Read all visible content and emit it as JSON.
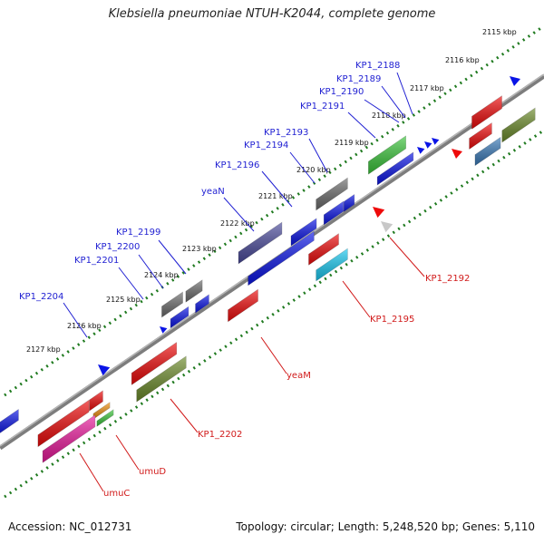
{
  "title": "Klebsiella pneumoniae NTUH-K2044, complete genome",
  "accession": "Accession: NC_012731",
  "topology": "Topology: circular; Length: 5,248,520 bp; Genes: 5,110",
  "ticks": [
    "2115 kbp",
    "2116 kbp",
    "2117 kbp",
    "2118 kbp",
    "2119 kbp",
    "2120 kbp",
    "2121 kbp",
    "2122 kbp",
    "2123 kbp",
    "2124 kbp",
    "2125 kbp",
    "2126 kbp",
    "2127 kbp"
  ],
  "top_labels": [
    "KP1_2188",
    "KP1_2189",
    "KP1_2190",
    "KP1_2191",
    "KP1_2193",
    "KP1_2194",
    "KP1_2196",
    "yeaN",
    "KP1_2199",
    "KP1_2200",
    "KP1_2201",
    "KP1_2204"
  ],
  "bottom_labels": [
    "KP1_2192",
    "KP1_2195",
    "yeaM",
    "KP1_2202",
    "umuD",
    "umuC"
  ],
  "colors": {
    "backbone": "#808080",
    "track_dots": "#1f7a1f",
    "top_label": "#1f1fd2",
    "bottom_label": "#d11a1a",
    "gene_blue": "#0a14e6",
    "gene_red": "#ee0a0a",
    "gene_green": "#3ac43a",
    "gene_gray": "#6b6b6b",
    "gene_navy": "#4a4a9a",
    "gene_olive": "#6b8a2a",
    "gene_steel": "#3a7ab8",
    "gene_cyan": "#18c8f0",
    "gene_pink": "#e8189a",
    "gene_orange": "#f09010"
  }
}
